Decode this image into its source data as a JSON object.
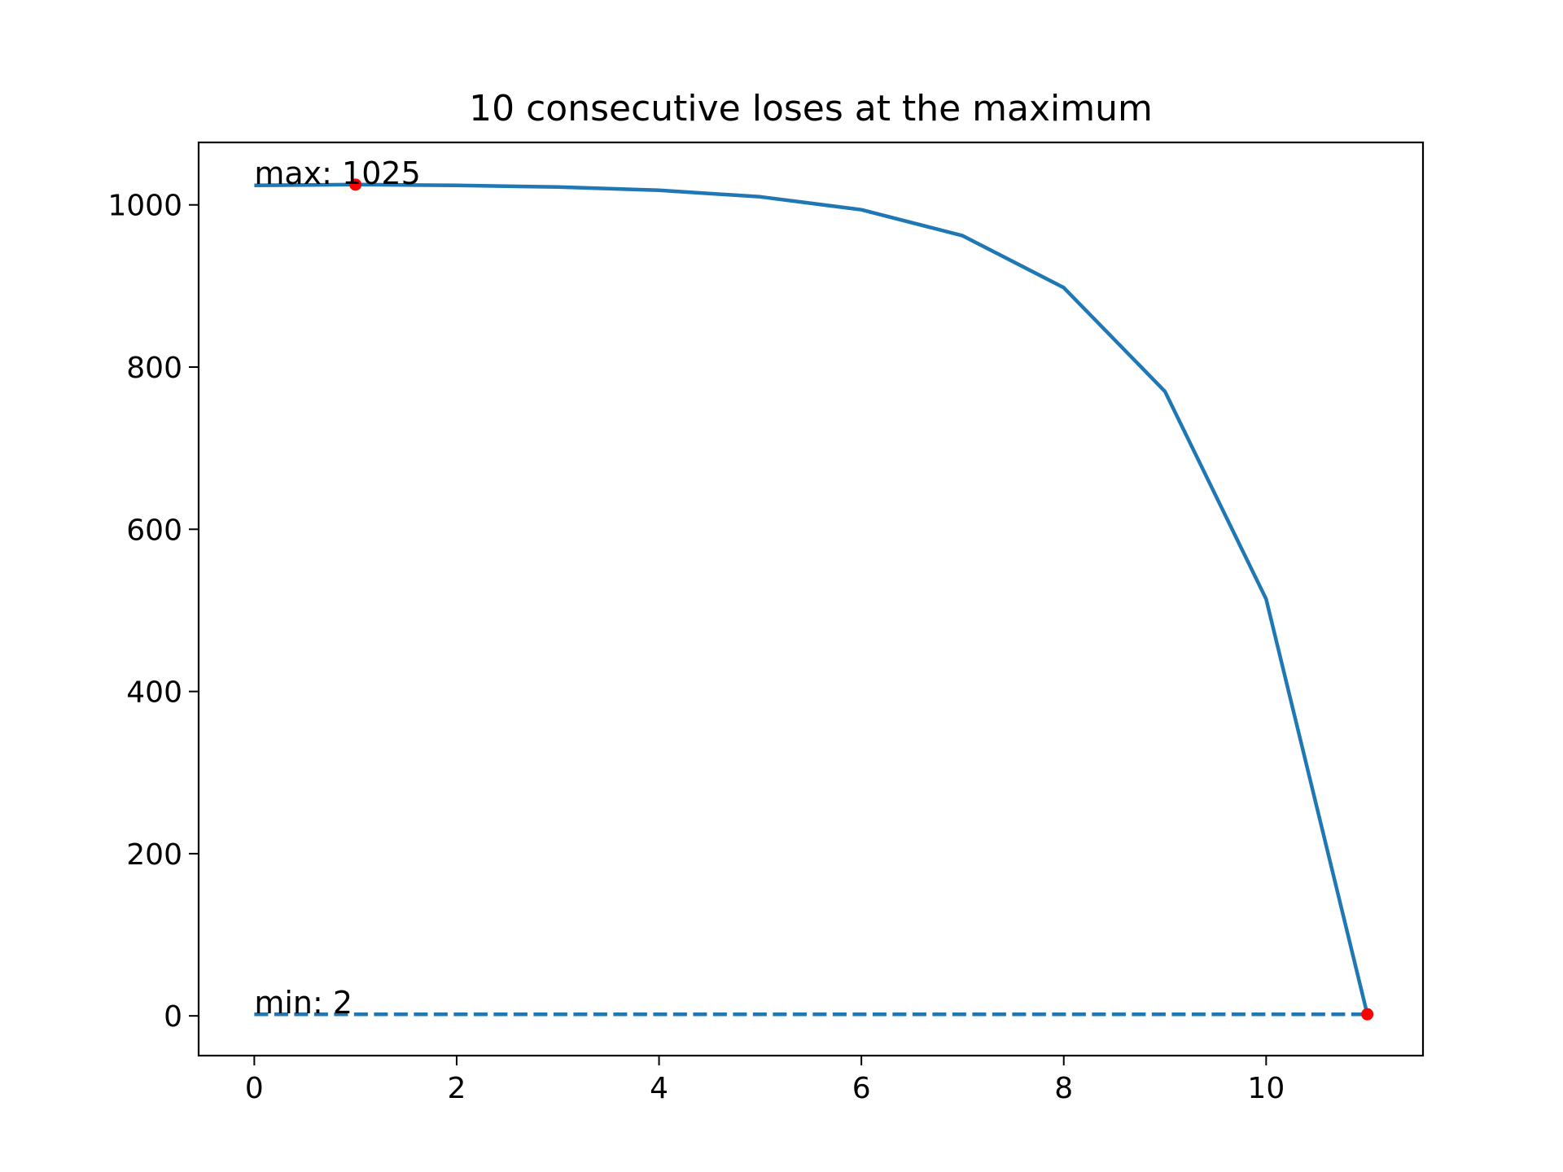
{
  "chart_data": {
    "type": "line",
    "title": "10 consecutive loses at the maximum",
    "xlabel": "",
    "ylabel": "",
    "xlim": [
      -0.55,
      11.55
    ],
    "ylim": [
      -49,
      1077
    ],
    "x_ticks": [
      0,
      2,
      4,
      6,
      8,
      10
    ],
    "y_ticks": [
      0,
      200,
      400,
      600,
      800,
      1000
    ],
    "grid": false,
    "legend": "none",
    "series": [
      {
        "x": [
          0,
          1,
          2,
          3,
          4,
          5,
          6,
          7,
          8,
          9,
          10,
          11
        ],
        "values": [
          1024,
          1025,
          1024,
          1022,
          1018,
          1010,
          994,
          962,
          898,
          770,
          514,
          2
        ],
        "color": "#1f77b4",
        "style": "solid"
      },
      {
        "x": [
          0,
          11
        ],
        "values": [
          2,
          2
        ],
        "color": "#1f77b4",
        "style": "dashed"
      }
    ],
    "markers": [
      {
        "x": 1,
        "y": 1025,
        "color": "#ff0000"
      },
      {
        "x": 11,
        "y": 2,
        "color": "#ff0000"
      }
    ],
    "annotations": [
      {
        "text": "max: 1025",
        "x": 0,
        "y": 1025
      },
      {
        "text": "min: 2",
        "x": 0,
        "y": 2
      }
    ]
  }
}
